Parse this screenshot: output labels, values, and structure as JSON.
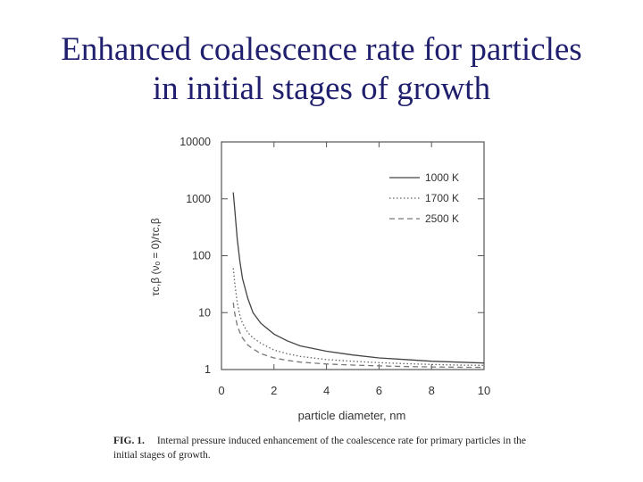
{
  "slide": {
    "title_line1": "Enhanced coalescence rate for particles",
    "title_line2": "in initial stages of growth"
  },
  "caption": {
    "label": "FIG. 1.",
    "text": "Internal pressure induced enhancement of the coalescence rate for primary particles in the initial stages of growth."
  },
  "chart_data": {
    "type": "line",
    "title": "",
    "xlabel": "particle diameter,  nm",
    "ylabel": "τc,β (νₒ = 0)/τc,β",
    "x_scale": "linear",
    "y_scale": "log",
    "xlim": [
      0,
      10
    ],
    "ylim": [
      1,
      10000
    ],
    "x_ticks": [
      "0",
      "2",
      "4",
      "6",
      "8",
      "10"
    ],
    "y_ticks": [
      "1",
      "10",
      "100",
      "1000",
      "10000"
    ],
    "grid": false,
    "legend_position": "top-right",
    "series": [
      {
        "name": "1000 K",
        "style": "solid",
        "color": "#444444",
        "x": [
          0.45,
          0.5,
          0.6,
          0.7,
          0.8,
          1.0,
          1.2,
          1.5,
          2.0,
          2.5,
          3.0,
          4.0,
          5.0,
          6.0,
          7.0,
          8.0,
          9.0,
          10.0
        ],
        "y": [
          1300,
          700,
          200,
          80,
          40,
          18,
          10,
          6.5,
          4.2,
          3.2,
          2.6,
          2.1,
          1.8,
          1.6,
          1.5,
          1.4,
          1.35,
          1.3
        ]
      },
      {
        "name": "1700 K",
        "style": "dotted",
        "color": "#666666",
        "x": [
          0.45,
          0.5,
          0.6,
          0.7,
          0.8,
          1.0,
          1.2,
          1.5,
          2.0,
          2.5,
          3.0,
          4.0,
          5.0,
          6.0,
          7.0,
          8.0,
          9.0,
          10.0
        ],
        "y": [
          60,
          35,
          15,
          9,
          6.5,
          4.5,
          3.6,
          2.9,
          2.2,
          1.9,
          1.7,
          1.5,
          1.4,
          1.32,
          1.27,
          1.23,
          1.2,
          1.18
        ]
      },
      {
        "name": "2500 K",
        "style": "dashed",
        "color": "#777777",
        "x": [
          0.45,
          0.5,
          0.6,
          0.7,
          0.8,
          1.0,
          1.2,
          1.5,
          2.0,
          2.5,
          3.0,
          4.0,
          5.0,
          6.0,
          7.0,
          8.0,
          9.0,
          10.0
        ],
        "y": [
          15,
          10,
          6,
          4.5,
          3.6,
          2.7,
          2.3,
          1.9,
          1.6,
          1.45,
          1.35,
          1.25,
          1.2,
          1.16,
          1.13,
          1.11,
          1.1,
          1.09
        ]
      }
    ]
  }
}
